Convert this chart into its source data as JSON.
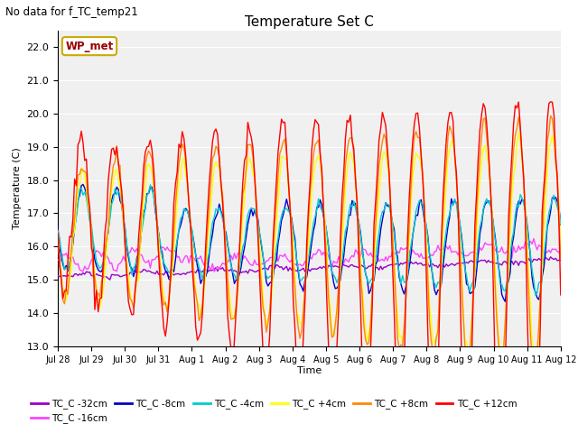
{
  "title": "Temperature Set C",
  "suptitle": "No data for f_TC_temp21",
  "xlabel": "Time",
  "ylabel": "Temperature (C)",
  "ylim": [
    13.0,
    22.5
  ],
  "yticks": [
    13.0,
    14.0,
    15.0,
    16.0,
    17.0,
    18.0,
    19.0,
    20.0,
    21.0,
    22.0
  ],
  "xtick_labels": [
    "Jul 28",
    "Jul 29",
    "Jul 30",
    "Jul 31",
    "Aug 1",
    "Aug 2",
    "Aug 3",
    "Aug 4",
    "Aug 5",
    "Aug 6",
    "Aug 7",
    "Aug 8",
    "Aug 9",
    "Aug 10",
    "Aug 11",
    "Aug 12"
  ],
  "wp_met_label": "WP_met",
  "legend_entries": [
    {
      "label": "TC_C -32cm",
      "color": "#9900CC"
    },
    {
      "label": "TC_C -16cm",
      "color": "#FF44FF"
    },
    {
      "label": "TC_C -8cm",
      "color": "#0000CC"
    },
    {
      "label": "TC_C -4cm",
      "color": "#00CCCC"
    },
    {
      "label": "TC_C +4cm",
      "color": "#FFFF00"
    },
    {
      "label": "TC_C +8cm",
      "color": "#FF8800"
    },
    {
      "label": "TC_C +12cm",
      "color": "#FF0000"
    }
  ],
  "background_color": "#E8E8E8",
  "grid_color": "#FFFFFF",
  "plot_area_color": "#F0F0F0"
}
